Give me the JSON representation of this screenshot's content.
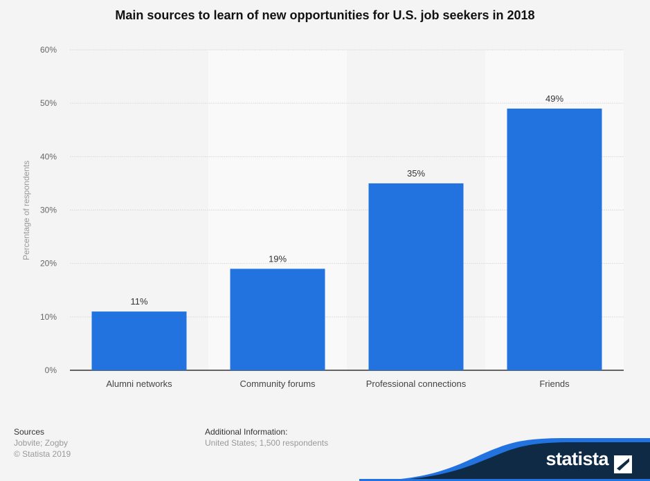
{
  "chart_data": {
    "type": "bar",
    "title": "Main sources to learn of new opportunities for U.S. job seekers in 2018",
    "categories": [
      "Alumni networks",
      "Community forums",
      "Professional connections",
      "Friends"
    ],
    "values": [
      11,
      19,
      35,
      49
    ],
    "value_labels": [
      "11%",
      "19%",
      "35%",
      "49%"
    ],
    "xlabel": "",
    "ylabel": "Percentage of respondents",
    "ylim": [
      0,
      60
    ],
    "yticks": [
      0,
      10,
      20,
      30,
      40,
      50,
      60
    ],
    "ytick_labels": [
      "0%",
      "10%",
      "20%",
      "30%",
      "40%",
      "50%",
      "60%"
    ],
    "grid": true,
    "bar_color": "#2273e0"
  },
  "footer": {
    "sources_label": "Sources",
    "sources": "Jobvite; Zogby",
    "copyright": "© Statista 2019",
    "additional_label": "Additional Information:",
    "additional": "United States; 1,500 respondents",
    "brand": "statista"
  }
}
